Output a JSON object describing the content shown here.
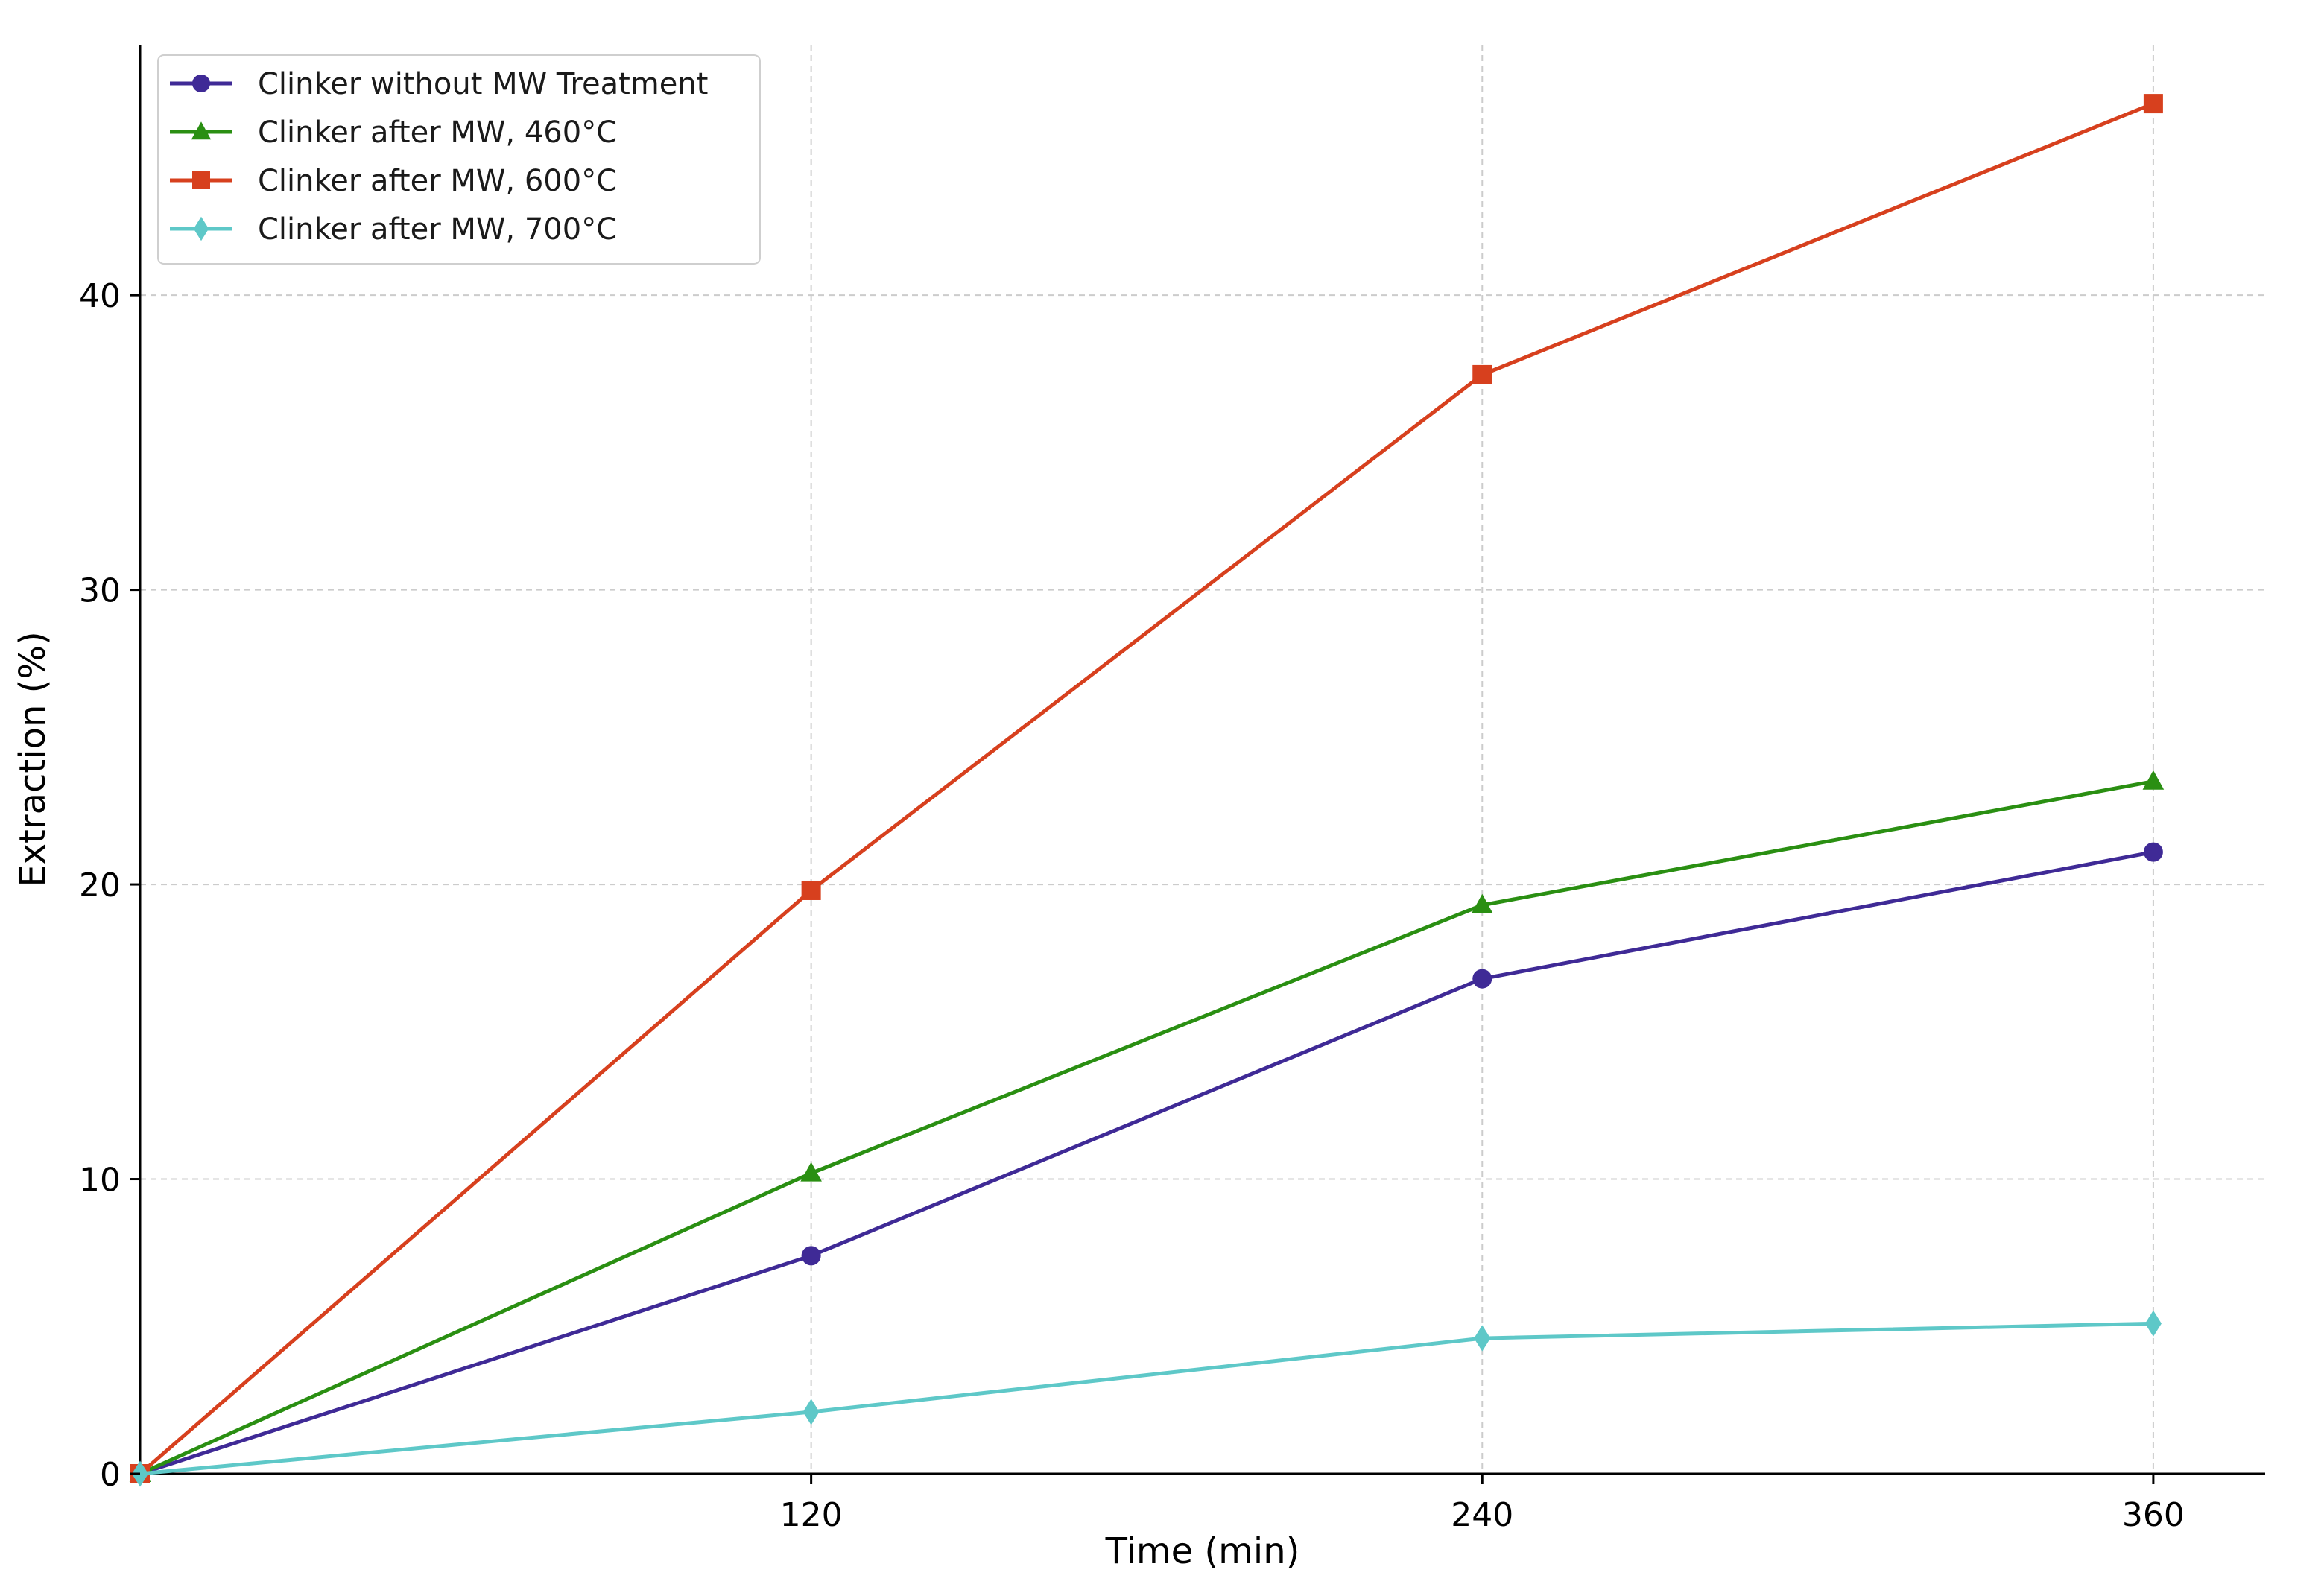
{
  "chart_data": {
    "type": "line",
    "title": "",
    "xlabel": "Time (min)",
    "ylabel": "Extraction (%)",
    "xlim": [
      0,
      380
    ],
    "ylim": [
      0,
      48.5
    ],
    "x_ticks": [
      120,
      240,
      360
    ],
    "y_ticks": [
      0,
      10,
      20,
      30,
      40
    ],
    "x": [
      0,
      120,
      240,
      360
    ],
    "grid": true,
    "legend_position": "top-left",
    "series": [
      {
        "name": "Clinker without MW Treatment",
        "values": [
          0,
          7.4,
          16.8,
          21.1
        ],
        "color": "#3f2a96",
        "marker": "circle"
      },
      {
        "name": "Clinker after MW, 460°C",
        "values": [
          0,
          10.2,
          19.3,
          23.5
        ],
        "color": "#2a8f12",
        "marker": "triangle"
      },
      {
        "name": "Clinker after MW, 600°C",
        "values": [
          0,
          19.8,
          37.3,
          46.5
        ],
        "color": "#d7401e",
        "marker": "square"
      },
      {
        "name": "Clinker after MW, 700°C",
        "values": [
          0,
          2.1,
          4.6,
          5.1
        ],
        "color": "#5ec8c8",
        "marker": "diamond"
      }
    ]
  }
}
